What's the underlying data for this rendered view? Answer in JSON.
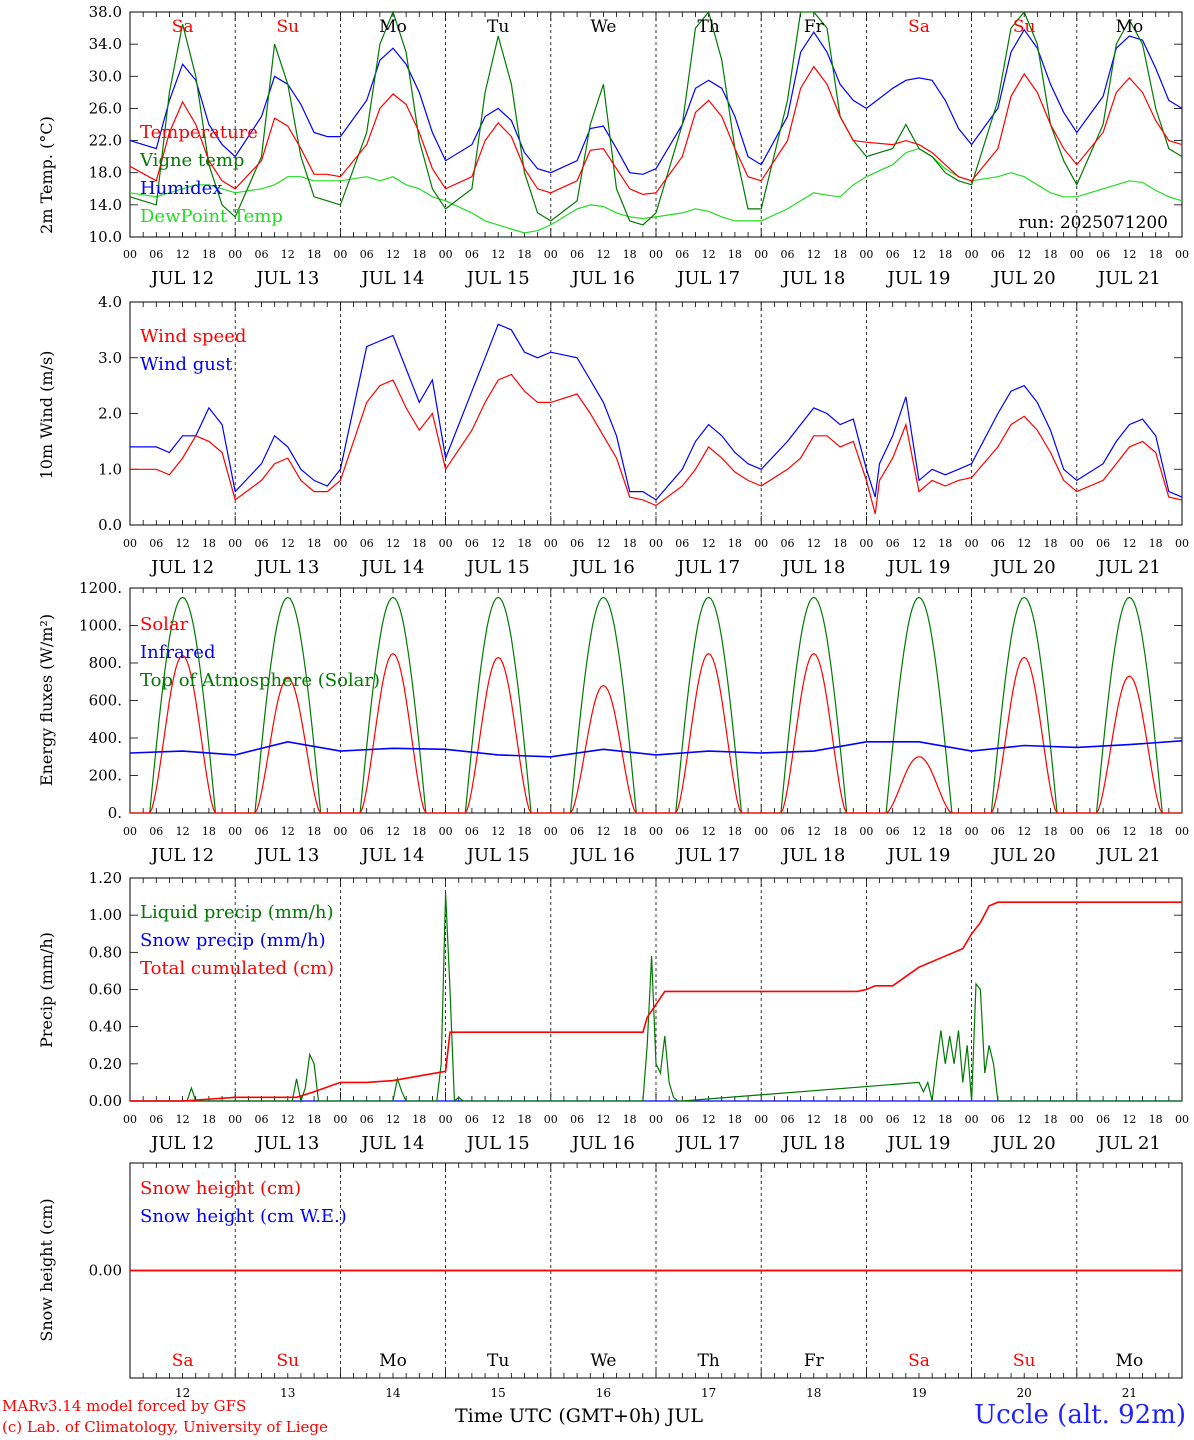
{
  "colors": {
    "temperature": "#ff0000",
    "vigne": "#007a00",
    "humidex": "#0000ff",
    "dewpoint": "#22dd22",
    "wind_speed": "#ff0000",
    "wind_gust": "#0000ff",
    "solar": "#ff0000",
    "infrared": "#0000ff",
    "toa": "#007a00",
    "liquid": "#007a00",
    "snow_precip": "#0000ff",
    "cumulated": "#ff0000",
    "snow_cm": "#ff0000",
    "snow_we": "#0000ff",
    "weekend": "#ff0000",
    "weekday": "#000000"
  },
  "run_label": "run: 2025071200",
  "time_axis": {
    "hour_ticks": [
      "00",
      "06",
      "12",
      "18"
    ],
    "final_tick": "00",
    "day_labels": [
      "JUL 12",
      "JUL 13",
      "JUL 14",
      "JUL 15",
      "JUL 16",
      "JUL 17",
      "JUL 18",
      "JUL 19",
      "JUL 20",
      "JUL 21"
    ],
    "weekdays": [
      "Sa",
      "Su",
      "Mo",
      "Tu",
      "We",
      "Th",
      "Fr",
      "Sa",
      "Su",
      "Mo"
    ],
    "weekend": [
      true,
      true,
      false,
      false,
      false,
      false,
      false,
      true,
      true,
      false
    ],
    "day_numbers": [
      "12",
      "13",
      "14",
      "15",
      "16",
      "17",
      "18",
      "19",
      "20",
      "21"
    ]
  },
  "footer": {
    "credit_line1": "MARv3.14 model forced by GFS",
    "credit_line2": "(c) Lab. of Climatology, University of Liege",
    "xaxis_title": "Time UTC (GMT+0h) JUL",
    "station": "Uccle (alt. 92m)"
  },
  "chart_data": [
    {
      "id": "temp",
      "type": "line",
      "ylabel": "2m Temp. (°C)",
      "ylim": [
        10,
        38
      ],
      "yticks": [
        "10.0",
        "14.0",
        "18.0",
        "22.0",
        "26.0",
        "30.0",
        "34.0",
        "38.0"
      ],
      "ytick_values": [
        10,
        14,
        18,
        22,
        26,
        30,
        34,
        38
      ],
      "xunit": "hours from JUL 12 00 UTC",
      "x": [
        0,
        6,
        9,
        12,
        15,
        18,
        21,
        24,
        30,
        33,
        36,
        39,
        42,
        45,
        48,
        54,
        57,
        60,
        63,
        66,
        69,
        72,
        78,
        81,
        84,
        87,
        90,
        93,
        96,
        102,
        105,
        108,
        111,
        114,
        117,
        120,
        126,
        129,
        132,
        135,
        138,
        141,
        144,
        150,
        153,
        156,
        159,
        162,
        165,
        168,
        174,
        177,
        180,
        183,
        186,
        189,
        192,
        198,
        201,
        204,
        207,
        210,
        213,
        216,
        222,
        225,
        228,
        231,
        234,
        237,
        240
      ],
      "series": [
        {
          "name": "Temperature",
          "color_key": "temperature",
          "values": [
            18.8,
            17.0,
            23.0,
            26.8,
            24.0,
            19.5,
            17.0,
            16.0,
            19.5,
            24.8,
            23.8,
            21.0,
            17.8,
            17.8,
            17.5,
            21.5,
            26.0,
            27.8,
            26.5,
            23.0,
            18.5,
            16.0,
            17.5,
            22.0,
            24.2,
            22.5,
            18.5,
            16.0,
            15.5,
            17.0,
            20.8,
            21.0,
            18.5,
            16.0,
            15.3,
            15.5,
            20.0,
            25.5,
            27.0,
            25.0,
            21.0,
            17.5,
            17.0,
            22.0,
            28.5,
            31.2,
            29.0,
            25.0,
            22.0,
            21.8,
            21.5,
            22.0,
            21.5,
            20.5,
            19.0,
            17.5,
            17.0,
            21.0,
            27.5,
            30.3,
            28.0,
            24.0,
            21.0,
            19.0,
            23.0,
            28.0,
            29.8,
            28.0,
            24.5,
            22.0,
            21.5
          ]
        },
        {
          "name": "Vigne temp",
          "color_key": "vigne",
          "values": [
            15.0,
            14.0,
            28.0,
            36.5,
            30.0,
            19.0,
            14.0,
            12.5,
            20.0,
            34.0,
            29.0,
            20.0,
            15.0,
            14.5,
            14.0,
            23.0,
            34.0,
            38.0,
            33.0,
            22.0,
            16.0,
            13.5,
            16.0,
            28.0,
            35.0,
            29.0,
            18.0,
            13.0,
            12.0,
            14.5,
            24.0,
            29.0,
            16.0,
            12.0,
            11.5,
            13.0,
            24.0,
            36.0,
            38.0,
            32.0,
            21.0,
            13.5,
            13.5,
            27.0,
            38.0,
            38.0,
            36.0,
            25.0,
            22.0,
            20.0,
            21.0,
            24.0,
            21.0,
            20.0,
            18.0,
            17.0,
            16.5,
            27.0,
            36.0,
            38.0,
            34.0,
            24.0,
            19.5,
            16.5,
            24.0,
            34.0,
            37.0,
            34.0,
            26.0,
            21.0,
            20.0
          ]
        },
        {
          "name": "Humidex",
          "color_key": "humidex",
          "values": [
            22.0,
            21.0,
            27.0,
            31.5,
            29.5,
            24.0,
            21.5,
            20.0,
            25.0,
            30.0,
            29.0,
            26.5,
            23.0,
            22.5,
            22.5,
            27.0,
            32.0,
            33.5,
            31.5,
            28.0,
            23.0,
            19.5,
            21.5,
            25.0,
            26.0,
            24.5,
            20.5,
            18.5,
            18.0,
            19.5,
            23.5,
            23.8,
            21.0,
            18.0,
            17.8,
            18.5,
            24.0,
            28.5,
            29.5,
            28.5,
            25.0,
            20.0,
            19.0,
            25.0,
            33.0,
            35.5,
            33.0,
            29.0,
            27.0,
            26.0,
            28.5,
            29.5,
            29.8,
            29.5,
            27.0,
            23.5,
            21.5,
            26.0,
            33.0,
            35.8,
            33.5,
            29.0,
            25.5,
            23.0,
            27.5,
            33.5,
            35.0,
            34.5,
            31.0,
            27.0,
            26.0
          ]
        },
        {
          "name": "DewPoint Temp",
          "color_key": "dewpoint",
          "values": [
            15.5,
            15.0,
            15.5,
            16.0,
            16.5,
            16.5,
            16.0,
            15.5,
            16.0,
            16.5,
            17.5,
            17.5,
            17.0,
            17.0,
            17.0,
            17.5,
            17.0,
            17.5,
            16.5,
            16.0,
            15.0,
            14.5,
            13.0,
            12.0,
            11.5,
            11.0,
            10.5,
            10.8,
            11.5,
            13.5,
            14.0,
            13.8,
            13.0,
            12.5,
            12.3,
            12.5,
            13.0,
            13.5,
            13.2,
            12.5,
            12.0,
            12.0,
            12.0,
            13.5,
            14.5,
            15.5,
            15.2,
            15.0,
            16.5,
            17.5,
            19.0,
            20.5,
            21.0,
            20.0,
            18.5,
            17.5,
            17.0,
            17.5,
            18.0,
            17.5,
            16.5,
            15.5,
            15.0,
            15.0,
            16.0,
            16.5,
            17.0,
            16.8,
            15.8,
            15.0,
            14.5
          ]
        }
      ]
    },
    {
      "id": "wind",
      "type": "line",
      "ylabel": "10m Wind (m/s)",
      "ylim": [
        0,
        4
      ],
      "yticks": [
        "0.0",
        "1.0",
        "2.0",
        "3.0",
        "4.0"
      ],
      "ytick_values": [
        0,
        1,
        2,
        3,
        4
      ],
      "xunit": "hours from JUL 12 00 UTC",
      "x": [
        0,
        6,
        9,
        12,
        15,
        18,
        21,
        24,
        30,
        33,
        36,
        39,
        42,
        45,
        48,
        54,
        57,
        60,
        63,
        66,
        69,
        72,
        78,
        81,
        84,
        87,
        90,
        93,
        96,
        102,
        105,
        108,
        111,
        114,
        117,
        120,
        126,
        129,
        132,
        135,
        138,
        141,
        144,
        150,
        153,
        156,
        159,
        162,
        165,
        168,
        170,
        171,
        174,
        177,
        180,
        183,
        186,
        189,
        192,
        198,
        201,
        204,
        207,
        210,
        213,
        216,
        222,
        225,
        228,
        231,
        234,
        237,
        240
      ],
      "series": [
        {
          "name": "Wind speed",
          "color_key": "wind_speed",
          "values": [
            1.0,
            1.0,
            0.9,
            1.2,
            1.6,
            1.5,
            1.3,
            0.45,
            0.8,
            1.1,
            1.2,
            0.8,
            0.6,
            0.6,
            0.8,
            2.2,
            2.5,
            2.6,
            2.1,
            1.7,
            2.0,
            1.0,
            1.7,
            2.2,
            2.6,
            2.7,
            2.4,
            2.2,
            2.2,
            2.35,
            2.0,
            1.6,
            1.2,
            0.5,
            0.45,
            0.35,
            0.7,
            1.0,
            1.4,
            1.2,
            0.95,
            0.8,
            0.7,
            1.0,
            1.2,
            1.6,
            1.6,
            1.4,
            1.5,
            0.8,
            0.2,
            0.8,
            1.2,
            1.8,
            0.6,
            0.8,
            0.7,
            0.8,
            0.85,
            1.4,
            1.8,
            1.95,
            1.7,
            1.3,
            0.8,
            0.6,
            0.8,
            1.1,
            1.4,
            1.5,
            1.3,
            0.5,
            0.45
          ]
        },
        {
          "name": "Wind gust",
          "color_key": "wind_gust",
          "values": [
            1.4,
            1.4,
            1.3,
            1.6,
            1.6,
            2.1,
            1.8,
            0.6,
            1.1,
            1.6,
            1.4,
            1.0,
            0.8,
            0.7,
            1.0,
            3.2,
            3.3,
            3.4,
            2.8,
            2.2,
            2.6,
            1.2,
            2.4,
            3.0,
            3.6,
            3.5,
            3.1,
            3.0,
            3.1,
            3.0,
            2.6,
            2.2,
            1.6,
            0.6,
            0.6,
            0.45,
            1.0,
            1.5,
            1.8,
            1.6,
            1.3,
            1.1,
            1.0,
            1.5,
            1.8,
            2.1,
            2.0,
            1.8,
            1.9,
            1.0,
            0.5,
            1.1,
            1.6,
            2.3,
            0.8,
            1.0,
            0.9,
            1.0,
            1.1,
            2.0,
            2.4,
            2.5,
            2.2,
            1.7,
            1.0,
            0.8,
            1.1,
            1.5,
            1.8,
            1.9,
            1.6,
            0.6,
            0.5
          ]
        }
      ]
    },
    {
      "id": "energy",
      "type": "line",
      "ylabel": "Energy fluxes (W/m²)",
      "ylim": [
        0,
        1200
      ],
      "yticks": [
        "0.",
        "200.",
        "400.",
        "600.",
        "800.",
        "1000.",
        "1200."
      ],
      "ytick_values": [
        0,
        200,
        400,
        600,
        800,
        1000,
        1200
      ],
      "daylight_hours": [
        4.5,
        19.5
      ],
      "toa_peak": 1150,
      "solar_peaks": [
        840,
        720,
        850,
        830,
        680,
        850,
        850,
        300,
        830,
        730
      ],
      "infrared_x": [
        0,
        12,
        24,
        36,
        48,
        60,
        72,
        84,
        96,
        108,
        120,
        132,
        144,
        156,
        168,
        180,
        192,
        204,
        216,
        228,
        240
      ],
      "infrared_values": [
        320,
        330,
        310,
        380,
        330,
        345,
        340,
        310,
        300,
        340,
        310,
        330,
        320,
        330,
        380,
        380,
        330,
        360,
        350,
        365,
        385
      ],
      "series": [
        {
          "name": "Solar",
          "color_key": "solar"
        },
        {
          "name": "Infrared",
          "color_key": "infrared"
        },
        {
          "name": "Top of Atmosphere (Solar)",
          "color_key": "toa"
        }
      ]
    },
    {
      "id": "precip",
      "type": "line",
      "ylabel": "Precip (mm/h)",
      "ylim": [
        0,
        1.2
      ],
      "yticks": [
        "0.00",
        "0.20",
        "0.40",
        "0.60",
        "0.80",
        "1.00",
        "1.20"
      ],
      "ytick_values": [
        0,
        0.2,
        0.4,
        0.6,
        0.8,
        1.0,
        1.2
      ],
      "liquid_x": [
        0,
        13,
        14,
        15,
        30,
        37,
        38,
        39,
        40,
        41,
        42,
        43,
        44,
        45,
        46,
        60,
        61,
        62,
        63,
        64,
        70,
        71,
        72,
        73,
        74,
        75,
        76,
        78,
        86,
        117,
        118,
        119,
        120,
        121,
        122,
        123,
        124,
        125,
        126,
        180,
        181,
        182,
        183,
        184,
        185,
        186,
        187,
        188,
        189,
        190,
        191,
        192,
        193,
        194,
        195,
        196,
        197,
        198,
        199,
        200,
        201,
        240
      ],
      "liquid_values": [
        0,
        0,
        0.07,
        0,
        0,
        0,
        0.12,
        0,
        0.07,
        0.25,
        0.2,
        0,
        0,
        0,
        0,
        0,
        0.12,
        0.05,
        0,
        0,
        0,
        0.2,
        1.12,
        0.6,
        0,
        0.02,
        0,
        0,
        0,
        0,
        0.3,
        0.78,
        0.2,
        0.15,
        0.35,
        0.1,
        0.02,
        0,
        0,
        0.1,
        0.05,
        0.1,
        0,
        0.2,
        0.38,
        0.2,
        0.35,
        0.2,
        0.38,
        0.1,
        0.3,
        0,
        0.63,
        0.6,
        0.15,
        0.3,
        0.2,
        0,
        0,
        0,
        0,
        0
      ],
      "cumulated_x": [
        0,
        12,
        24,
        36,
        38,
        42,
        48,
        54,
        60,
        72,
        73,
        84,
        96,
        108,
        117,
        118,
        120,
        122,
        132,
        144,
        156,
        166,
        168,
        170,
        174,
        180,
        188,
        190,
        192,
        194,
        196,
        198,
        200,
        216,
        240
      ],
      "cumulated_values": [
        0,
        0,
        0.02,
        0.02,
        0.02,
        0.05,
        0.1,
        0.1,
        0.11,
        0.16,
        0.37,
        0.37,
        0.37,
        0.37,
        0.37,
        0.45,
        0.52,
        0.59,
        0.59,
        0.59,
        0.59,
        0.59,
        0.6,
        0.62,
        0.62,
        0.72,
        0.8,
        0.82,
        0.9,
        0.96,
        1.05,
        1.07,
        1.07,
        1.07,
        1.07
      ],
      "series": [
        {
          "name": "Liquid precip (mm/h)",
          "color_key": "liquid"
        },
        {
          "name": "Snow precip (mm/h)",
          "color_key": "snow_precip"
        },
        {
          "name": "Total cumulated (cm)",
          "color_key": "cumulated"
        }
      ]
    },
    {
      "id": "snow",
      "type": "line",
      "ylabel": "Snow height (cm)",
      "ylim": [
        -1,
        1
      ],
      "yticks": [
        "0.00"
      ],
      "ytick_values": [
        0
      ],
      "x": [
        0,
        240
      ],
      "series": [
        {
          "name": "Snow height (cm)",
          "color_key": "snow_cm",
          "values": [
            0,
            0
          ]
        },
        {
          "name": "Snow height (cm W.E.)",
          "color_key": "snow_we",
          "values": [
            0,
            0
          ]
        }
      ]
    }
  ]
}
